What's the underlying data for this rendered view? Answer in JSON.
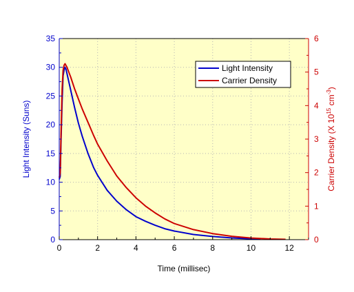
{
  "chart_data": {
    "type": "line",
    "xlabel": "Time (millisec)",
    "ylabel_left": "Light Intensity (Suns)",
    "ylabel_right_parts": [
      "Carrier Density (X 10",
      "15",
      " cm",
      "-3",
      ")"
    ],
    "xlim": [
      0,
      13
    ],
    "ylim_left": [
      0,
      35
    ],
    "ylim_right": [
      0,
      6
    ],
    "x_ticks": [
      "0",
      "2",
      "4",
      "6",
      "8",
      "10",
      "12"
    ],
    "y_left_ticks": [
      "0",
      "5",
      "10",
      "15",
      "20",
      "25",
      "30",
      "35"
    ],
    "y_right_ticks": [
      "0",
      "1",
      "2",
      "3",
      "4",
      "5",
      "6"
    ],
    "grid": true,
    "legend_position": "top-right",
    "colors": {
      "plot_background": "#ffffc8",
      "light_intensity": "#0000cc",
      "carrier_density": "#cc0000",
      "left_axis": "#0000cc",
      "right_axis": "#cc0000",
      "grid": "#b4b4b4"
    },
    "series": [
      {
        "name": "Light Intensity",
        "axis": "left",
        "x": [
          0.0,
          0.05,
          0.1,
          0.15,
          0.2,
          0.25,
          0.3,
          0.35,
          0.4,
          0.5,
          0.6,
          0.8,
          1.0,
          1.2,
          1.5,
          1.8,
          2.0,
          2.5,
          3.0,
          3.5,
          4.0,
          4.5,
          5.0,
          5.5,
          6.0,
          7.0,
          8.0,
          9.0,
          10.0,
          10.5
        ],
        "y": [
          10.5,
          11.0,
          18.0,
          24.0,
          28.5,
          29.5,
          30.0,
          29.7,
          29.0,
          27.5,
          26.0,
          23.0,
          20.3,
          18.0,
          15.0,
          12.5,
          11.2,
          8.6,
          6.7,
          5.2,
          4.0,
          3.2,
          2.5,
          1.9,
          1.5,
          0.9,
          0.55,
          0.3,
          0.15,
          0.1
        ]
      },
      {
        "name": "Carrier Density",
        "axis": "right",
        "x": [
          0.0,
          0.05,
          0.1,
          0.15,
          0.2,
          0.25,
          0.3,
          0.35,
          0.4,
          0.5,
          0.6,
          0.8,
          1.0,
          1.2,
          1.5,
          1.8,
          2.0,
          2.5,
          3.0,
          3.5,
          4.0,
          4.5,
          5.0,
          5.5,
          6.0,
          7.0,
          8.0,
          9.0,
          10.0,
          11.0,
          11.8
        ],
        "y": [
          1.85,
          2.0,
          3.3,
          4.5,
          5.05,
          5.2,
          5.25,
          5.2,
          5.15,
          5.0,
          4.85,
          4.5,
          4.2,
          3.9,
          3.5,
          3.1,
          2.85,
          2.35,
          1.9,
          1.55,
          1.25,
          1.0,
          0.8,
          0.62,
          0.48,
          0.3,
          0.18,
          0.1,
          0.05,
          0.02,
          0.01
        ]
      }
    ]
  }
}
